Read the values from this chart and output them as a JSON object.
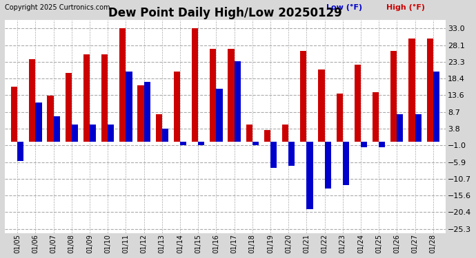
{
  "title": "Dew Point Daily High/Low 20250129",
  "copyright": "Copyright 2025 Curtronics.com",
  "legend_low": "Low (°F)",
  "legend_high": "High (°F)",
  "dates": [
    "01/05",
    "01/06",
    "01/07",
    "01/08",
    "01/09",
    "01/10",
    "01/11",
    "01/12",
    "01/13",
    "01/14",
    "01/15",
    "01/16",
    "01/17",
    "01/18",
    "01/19",
    "01/20",
    "01/21",
    "01/22",
    "01/23",
    "01/24",
    "01/25",
    "01/26",
    "01/27",
    "01/28"
  ],
  "high": [
    16.0,
    24.0,
    13.5,
    20.0,
    25.5,
    25.5,
    33.0,
    16.5,
    8.0,
    20.5,
    33.0,
    27.0,
    27.0,
    5.0,
    3.5,
    5.0,
    26.5,
    21.0,
    14.0,
    22.5,
    14.5,
    26.5,
    30.0,
    30.0
  ],
  "low": [
    -5.5,
    11.5,
    7.5,
    5.0,
    5.0,
    5.0,
    20.5,
    17.5,
    3.8,
    -1.0,
    -1.0,
    15.5,
    23.5,
    -1.0,
    -7.5,
    -7.0,
    -19.5,
    -13.5,
    -12.5,
    -1.5,
    -1.5,
    8.0,
    8.0,
    20.5
  ],
  "color_high": "#cc0000",
  "color_low": "#0000cc",
  "yticks": [
    33.0,
    28.1,
    23.3,
    18.4,
    13.6,
    8.7,
    3.8,
    -1.0,
    -5.9,
    -10.7,
    -15.6,
    -20.4,
    -25.3
  ],
  "ymin": -26.5,
  "ymax": 35.5,
  "bg_color": "#d8d8d8",
  "plot_bg": "#ffffff",
  "grid_color": "#aaaaaa",
  "title_fontsize": 12,
  "bar_width": 0.35
}
